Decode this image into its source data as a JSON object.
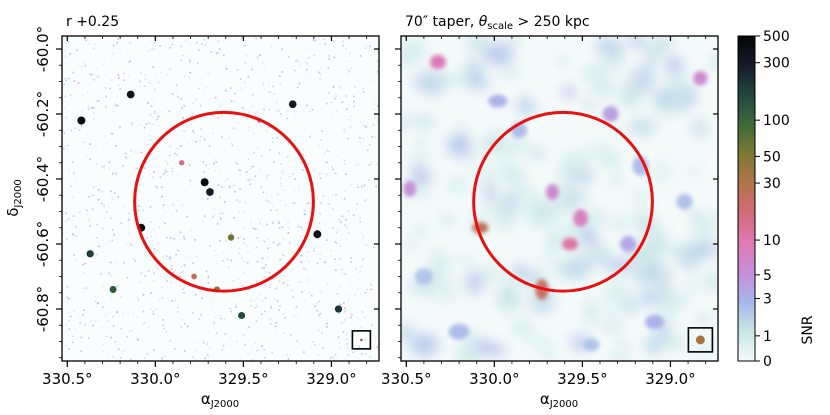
{
  "chart_data": [
    {
      "type": "heatmap",
      "title": "r +0.25",
      "xlabel": "α J2000",
      "ylabel": "δ J2000",
      "x_ticks": [
        "330.5°",
        "330.0°",
        "329.5°",
        "329.0°"
      ],
      "y_ticks": [
        "-60.0°",
        "-60.2°",
        "-60.4°",
        "-60.6°",
        "-60.8°"
      ],
      "x_tick_values": [
        330.5,
        330.0,
        329.5,
        329.0
      ],
      "y_tick_values": [
        -60.0,
        -60.2,
        -60.4,
        -60.6,
        -60.8
      ],
      "xlim": [
        330.53,
        328.73
      ],
      "ylim": [
        -60.96,
        -59.96
      ],
      "circle": {
        "ra": 329.61,
        "dec": -60.47,
        "radius_deg": 0.275,
        "color": "#e81010"
      },
      "beam_box": {
        "ra": 328.83,
        "dec": -60.895
      },
      "sources": [
        {
          "ra": 330.08,
          "dec": -60.55,
          "snr": 400
        },
        {
          "ra": 329.72,
          "dec": -60.41,
          "snr": 450
        },
        {
          "ra": 329.69,
          "dec": -60.44,
          "snr": 300
        },
        {
          "ra": 329.57,
          "dec": -60.58,
          "snr": 60
        },
        {
          "ra": 329.78,
          "dec": -60.7,
          "snr": 25
        },
        {
          "ra": 329.65,
          "dec": -60.74,
          "snr": 45
        },
        {
          "ra": 330.24,
          "dec": -60.74,
          "snr": 120
        },
        {
          "ra": 330.42,
          "dec": -60.22,
          "snr": 500
        },
        {
          "ra": 330.14,
          "dec": -60.14,
          "snr": 350
        },
        {
          "ra": 329.22,
          "dec": -60.17,
          "snr": 300
        },
        {
          "ra": 329.08,
          "dec": -60.57,
          "snr": 400
        },
        {
          "ra": 328.96,
          "dec": -60.8,
          "snr": 200
        },
        {
          "ra": 329.51,
          "dec": -60.82,
          "snr": 150
        },
        {
          "ra": 330.37,
          "dec": -60.63,
          "snr": 180
        },
        {
          "ra": 329.85,
          "dec": -60.35,
          "snr": 15
        },
        {
          "ra": 329.41,
          "dec": -60.22,
          "snr": 9
        }
      ]
    },
    {
      "type": "heatmap",
      "title_prefix": "70″ taper, ",
      "title_theta": "θ",
      "title_sub": "scale",
      "title_suffix": " > 250 kpc",
      "xlabel": "α J2000",
      "x_ticks": [
        "330.5°",
        "330.0°",
        "329.5°",
        "329.0°"
      ],
      "x_tick_values": [
        330.5,
        330.0,
        329.5,
        329.0
      ],
      "xlim": [
        330.53,
        328.73
      ],
      "ylim": [
        -60.96,
        -59.96
      ],
      "circle": {
        "ra": 329.61,
        "dec": -60.47,
        "radius_deg": 0.275,
        "color": "#e81010"
      },
      "beam_box": {
        "ra": 328.83,
        "dec": -60.895
      },
      "sources": [
        {
          "ra": 330.08,
          "dec": -60.55,
          "snr": 25,
          "w": 1.0,
          "h": 0.7
        },
        {
          "ra": 329.73,
          "dec": -60.74,
          "snr": 22,
          "w": 0.8,
          "h": 1.3
        },
        {
          "ra": 329.57,
          "dec": -60.6,
          "snr": 11,
          "w": 1.0,
          "h": 0.8
        },
        {
          "ra": 329.51,
          "dec": -60.52,
          "snr": 8,
          "w": 0.9,
          "h": 1.1
        },
        {
          "ra": 329.67,
          "dec": -60.44,
          "snr": 6,
          "w": 0.8,
          "h": 1.0
        },
        {
          "ra": 330.32,
          "dec": -60.04,
          "snr": 9,
          "w": 1.0,
          "h": 0.9
        },
        {
          "ra": 328.83,
          "dec": -60.09,
          "snr": 6,
          "w": 0.9,
          "h": 0.9
        },
        {
          "ra": 330.48,
          "dec": -60.43,
          "snr": 5,
          "w": 0.8,
          "h": 1.0
        },
        {
          "ra": 329.34,
          "dec": -60.2,
          "snr": 4,
          "w": 1.0,
          "h": 1.0
        },
        {
          "ra": 329.98,
          "dec": -60.16,
          "snr": 3,
          "w": 1.2,
          "h": 0.8
        },
        {
          "ra": 329.24,
          "dec": -60.6,
          "snr": 3.5,
          "w": 1.0,
          "h": 1.0
        },
        {
          "ra": 329.09,
          "dec": -60.84,
          "snr": 3,
          "w": 1.2,
          "h": 0.9
        },
        {
          "ra": 330.2,
          "dec": -60.87,
          "snr": 2.5,
          "w": 1.3,
          "h": 1.0
        },
        {
          "ra": 329.86,
          "dec": -60.25,
          "snr": 2.5,
          "w": 1.0,
          "h": 1.0
        },
        {
          "ra": 329.17,
          "dec": -60.36,
          "snr": 2.5,
          "w": 1.0,
          "h": 1.2
        },
        {
          "ra": 330.4,
          "dec": -60.7,
          "snr": 2.2,
          "w": 1.1,
          "h": 1.0
        },
        {
          "ra": 329.45,
          "dec": -60.91,
          "snr": 2.2,
          "w": 1.0,
          "h": 0.8
        },
        {
          "ra": 328.92,
          "dec": -60.47,
          "snr": 2.4,
          "w": 1.0,
          "h": 1.0
        }
      ]
    }
  ],
  "colorbar": {
    "label": "SNR",
    "scale": "arcsinh",
    "range": [
      0,
      500
    ],
    "ticks": [
      {
        "value": 0,
        "label": "0"
      },
      {
        "value": 1,
        "label": "1"
      },
      {
        "value": 3,
        "label": "3"
      },
      {
        "value": 5,
        "label": "5"
      },
      {
        "value": 10,
        "label": "10"
      },
      {
        "value": 30,
        "label": "30"
      },
      {
        "value": 50,
        "label": "50"
      },
      {
        "value": 100,
        "label": "100"
      },
      {
        "value": 300,
        "label": "300"
      },
      {
        "value": 500,
        "label": "500"
      }
    ],
    "colormap": [
      "#f5fbfb",
      "#c8e6e6",
      "#a9b6ea",
      "#c78ed8",
      "#e07ab3",
      "#d46a7a",
      "#b0744a",
      "#7d7a32",
      "#3e6a3a",
      "#22463f",
      "#161c2a",
      "#050508"
    ]
  }
}
